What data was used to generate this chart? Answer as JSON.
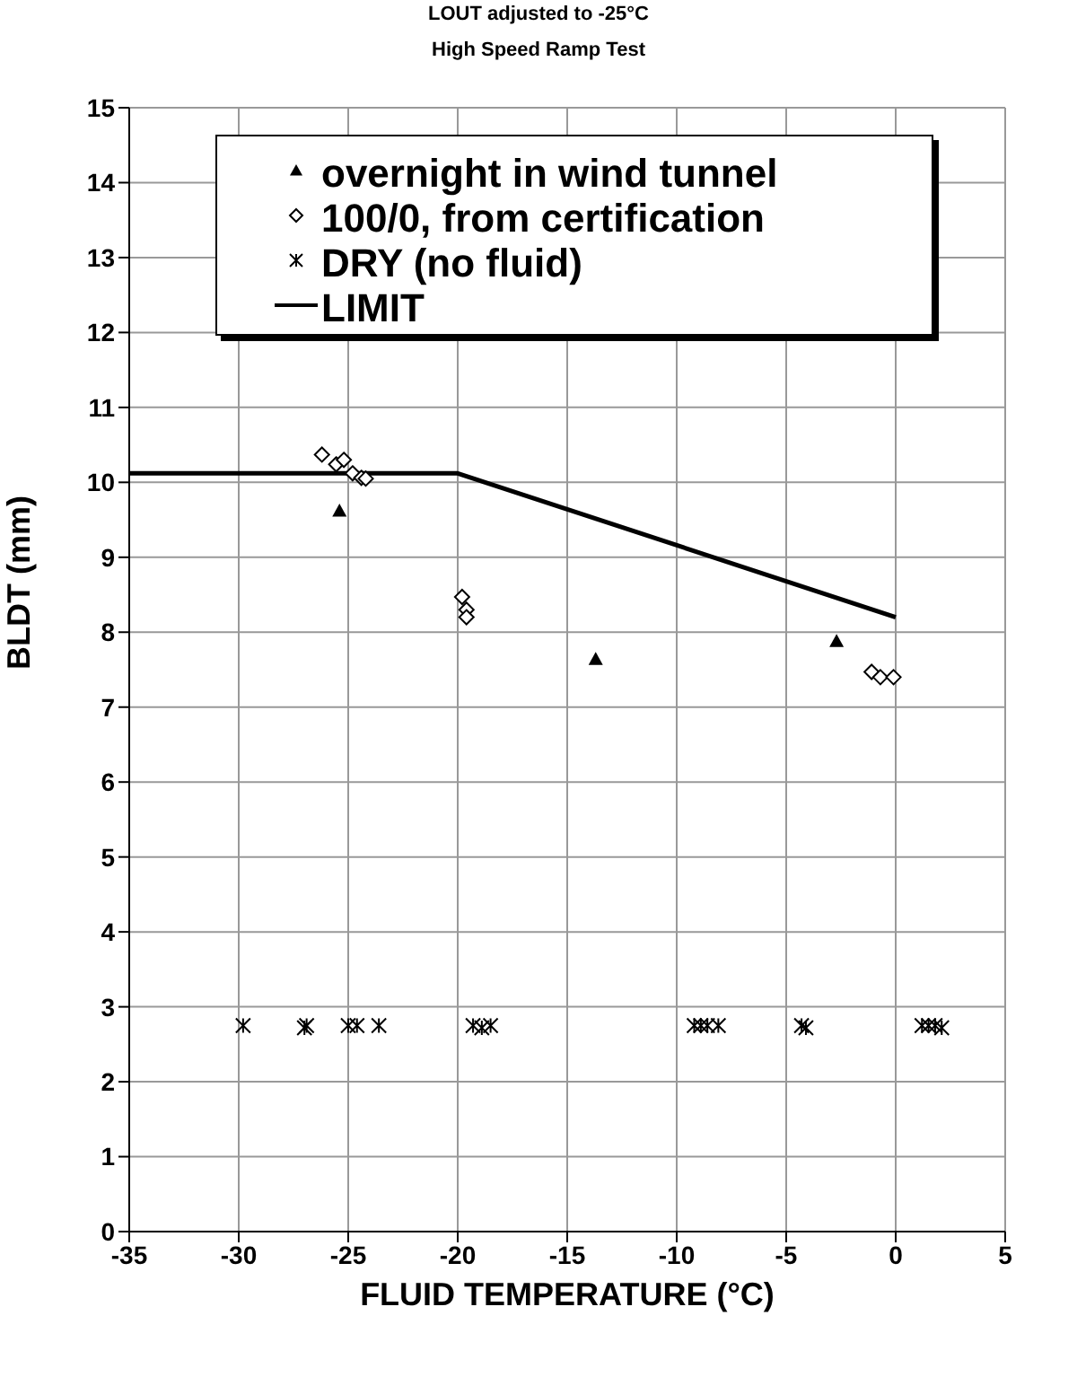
{
  "chart_data": {
    "type": "scatter",
    "title": "LOUT adjusted to -25°C",
    "subtitle": "High Speed Ramp Test",
    "xlabel": "FLUID TEMPERATURE (°C)",
    "ylabel": "BLDT (mm)",
    "xlim": [
      -35,
      5
    ],
    "xticks": [
      -35,
      -30,
      -25,
      -20,
      -15,
      -10,
      -5,
      0,
      5
    ],
    "ylim": [
      0,
      15
    ],
    "yticks": [
      0,
      1,
      2,
      3,
      4,
      5,
      6,
      7,
      8,
      9,
      10,
      11,
      12,
      13,
      14,
      15
    ],
    "grid": true,
    "legend": "top right",
    "series": [
      {
        "name": "overnight in wind tunnel",
        "marker": "triangle",
        "color": "#000000",
        "x": [
          -25.4,
          -13.7,
          -2.7
        ],
        "values": [
          9.62,
          7.64,
          7.88
        ]
      },
      {
        "name": "100/0, from certification",
        "marker": "diamond",
        "color": "#000000",
        "x": [
          -26.2,
          -25.55,
          -25.2,
          -24.8,
          -24.4,
          -24.2,
          -19.8,
          -19.6,
          -19.6,
          -1.1,
          -0.7,
          -0.1
        ],
        "values": [
          10.37,
          10.24,
          10.3,
          10.12,
          10.06,
          10.05,
          8.47,
          8.3,
          8.2,
          7.47,
          7.4,
          7.4
        ]
      },
      {
        "name": "DRY (no fluid)",
        "marker": "cross",
        "color": "#000000",
        "x": [
          -29.8,
          -27.0,
          -26.9,
          -25.0,
          -24.6,
          -23.6,
          -19.3,
          -18.9,
          -18.5,
          -9.2,
          -8.9,
          -8.6,
          -8.1,
          -4.3,
          -4.1,
          1.2,
          1.5,
          1.8,
          2.1
        ],
        "values": [
          2.75,
          2.72,
          2.75,
          2.75,
          2.75,
          2.75,
          2.75,
          2.72,
          2.75,
          2.75,
          2.75,
          2.75,
          2.75,
          2.75,
          2.72,
          2.75,
          2.75,
          2.75,
          2.72
        ]
      },
      {
        "name": "LIMIT",
        "type": "line",
        "marker": "none",
        "line_style": "solid",
        "color": "#000000",
        "x": [
          -35,
          -20,
          0
        ],
        "values": [
          10.12,
          10.12,
          8.2
        ]
      }
    ]
  }
}
